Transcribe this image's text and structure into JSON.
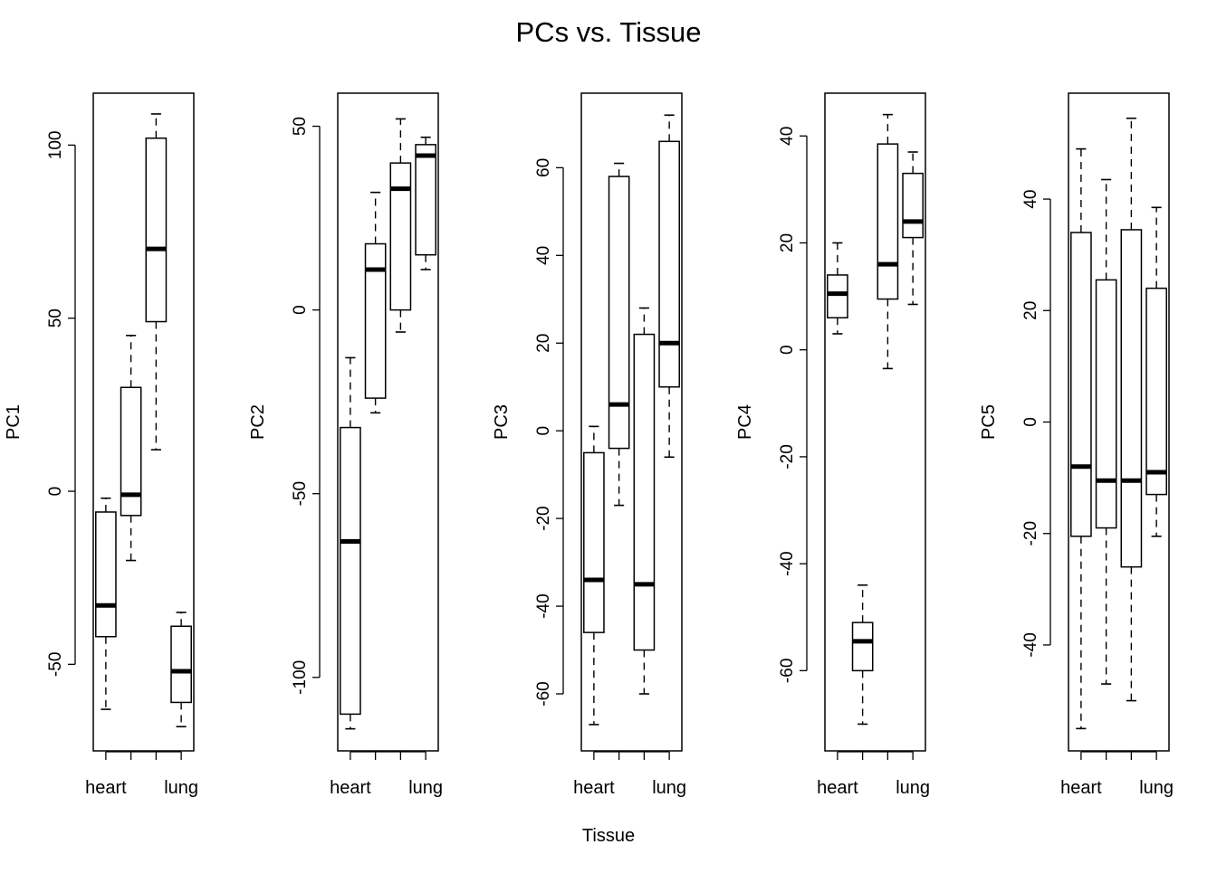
{
  "figure": {
    "title": "PCs vs. Tissue",
    "xlabel": "Tissue"
  },
  "chart_data": [
    {
      "type": "boxplot",
      "ylabel": "PC1",
      "ylim": [
        -75,
        115
      ],
      "yticks": [
        -50,
        0,
        50,
        100
      ],
      "categories": [
        "heart",
        "",
        "",
        "lung"
      ],
      "tick_labels": [
        "heart",
        "lung"
      ],
      "boxes": [
        {
          "min": -63,
          "q1": -42,
          "median": -33,
          "q3": -6,
          "max": -2
        },
        {
          "min": -20,
          "q1": -7,
          "median": -1,
          "q3": 30,
          "max": 45
        },
        {
          "min": 12,
          "q1": 49,
          "median": 70,
          "q3": 102,
          "max": 109
        },
        {
          "min": -68,
          "q1": -61,
          "median": -52,
          "q3": -39,
          "max": -35
        }
      ]
    },
    {
      "type": "boxplot",
      "ylabel": "PC2",
      "ylim": [
        -120,
        59
      ],
      "yticks": [
        -100,
        -50,
        0,
        50
      ],
      "categories": [
        "heart",
        "",
        "",
        "lung"
      ],
      "tick_labels": [
        "heart",
        "lung"
      ],
      "boxes": [
        {
          "min": -114,
          "q1": -110,
          "median": -63,
          "q3": -32,
          "max": -13
        },
        {
          "min": -28,
          "q1": -24,
          "median": 11,
          "q3": 18,
          "max": 32
        },
        {
          "min": -6,
          "q1": 0,
          "median": 33,
          "q3": 40,
          "max": 52
        },
        {
          "min": 11,
          "q1": 15,
          "median": 42,
          "q3": 45,
          "max": 47
        }
      ]
    },
    {
      "type": "boxplot",
      "ylabel": "PC3",
      "ylim": [
        -73,
        77
      ],
      "yticks": [
        -60,
        -40,
        -20,
        0,
        20,
        40,
        60
      ],
      "categories": [
        "heart",
        "",
        "",
        "lung"
      ],
      "tick_labels": [
        "heart",
        "lung"
      ],
      "boxes": [
        {
          "min": -67,
          "q1": -46,
          "median": -34,
          "q3": -5,
          "max": 1
        },
        {
          "min": -17,
          "q1": -4,
          "median": 6,
          "q3": 58,
          "max": 61
        },
        {
          "min": -60,
          "q1": -50,
          "median": -35,
          "q3": 22,
          "max": 28
        },
        {
          "min": -6,
          "q1": 10,
          "median": 20,
          "q3": 66,
          "max": 72
        }
      ]
    },
    {
      "type": "boxplot",
      "ylabel": "PC4",
      "ylim": [
        -75,
        48
      ],
      "yticks": [
        -60,
        -40,
        -20,
        0,
        20,
        40
      ],
      "categories": [
        "heart",
        "",
        "",
        "lung"
      ],
      "tick_labels": [
        "heart",
        "lung"
      ],
      "boxes": [
        {
          "min": 3,
          "q1": 6,
          "median": 10.5,
          "q3": 14,
          "max": 20
        },
        {
          "min": -70,
          "q1": -60,
          "median": -54.5,
          "q3": -51,
          "max": -44
        },
        {
          "min": -3.5,
          "q1": 9.5,
          "median": 16,
          "q3": 38.5,
          "max": 44
        },
        {
          "min": 8.5,
          "q1": 21,
          "median": 24,
          "q3": 33,
          "max": 37
        }
      ]
    },
    {
      "type": "boxplot",
      "ylabel": "PC5",
      "ylim": [
        -59,
        59
      ],
      "yticks": [
        -40,
        -20,
        0,
        20,
        40
      ],
      "categories": [
        "heart",
        "",
        "",
        "lung"
      ],
      "tick_labels": [
        "heart",
        "lung"
      ],
      "boxes": [
        {
          "min": -55,
          "q1": -20.5,
          "median": -8,
          "q3": 34,
          "max": 49
        },
        {
          "min": -47,
          "q1": -19,
          "median": -10.5,
          "q3": 25.5,
          "max": 43.5
        },
        {
          "min": -50,
          "q1": -26,
          "median": -10.5,
          "q3": 34.5,
          "max": 54.5
        },
        {
          "min": -20.5,
          "q1": -13,
          "median": -9,
          "q3": 24,
          "max": 38.5
        }
      ]
    }
  ]
}
